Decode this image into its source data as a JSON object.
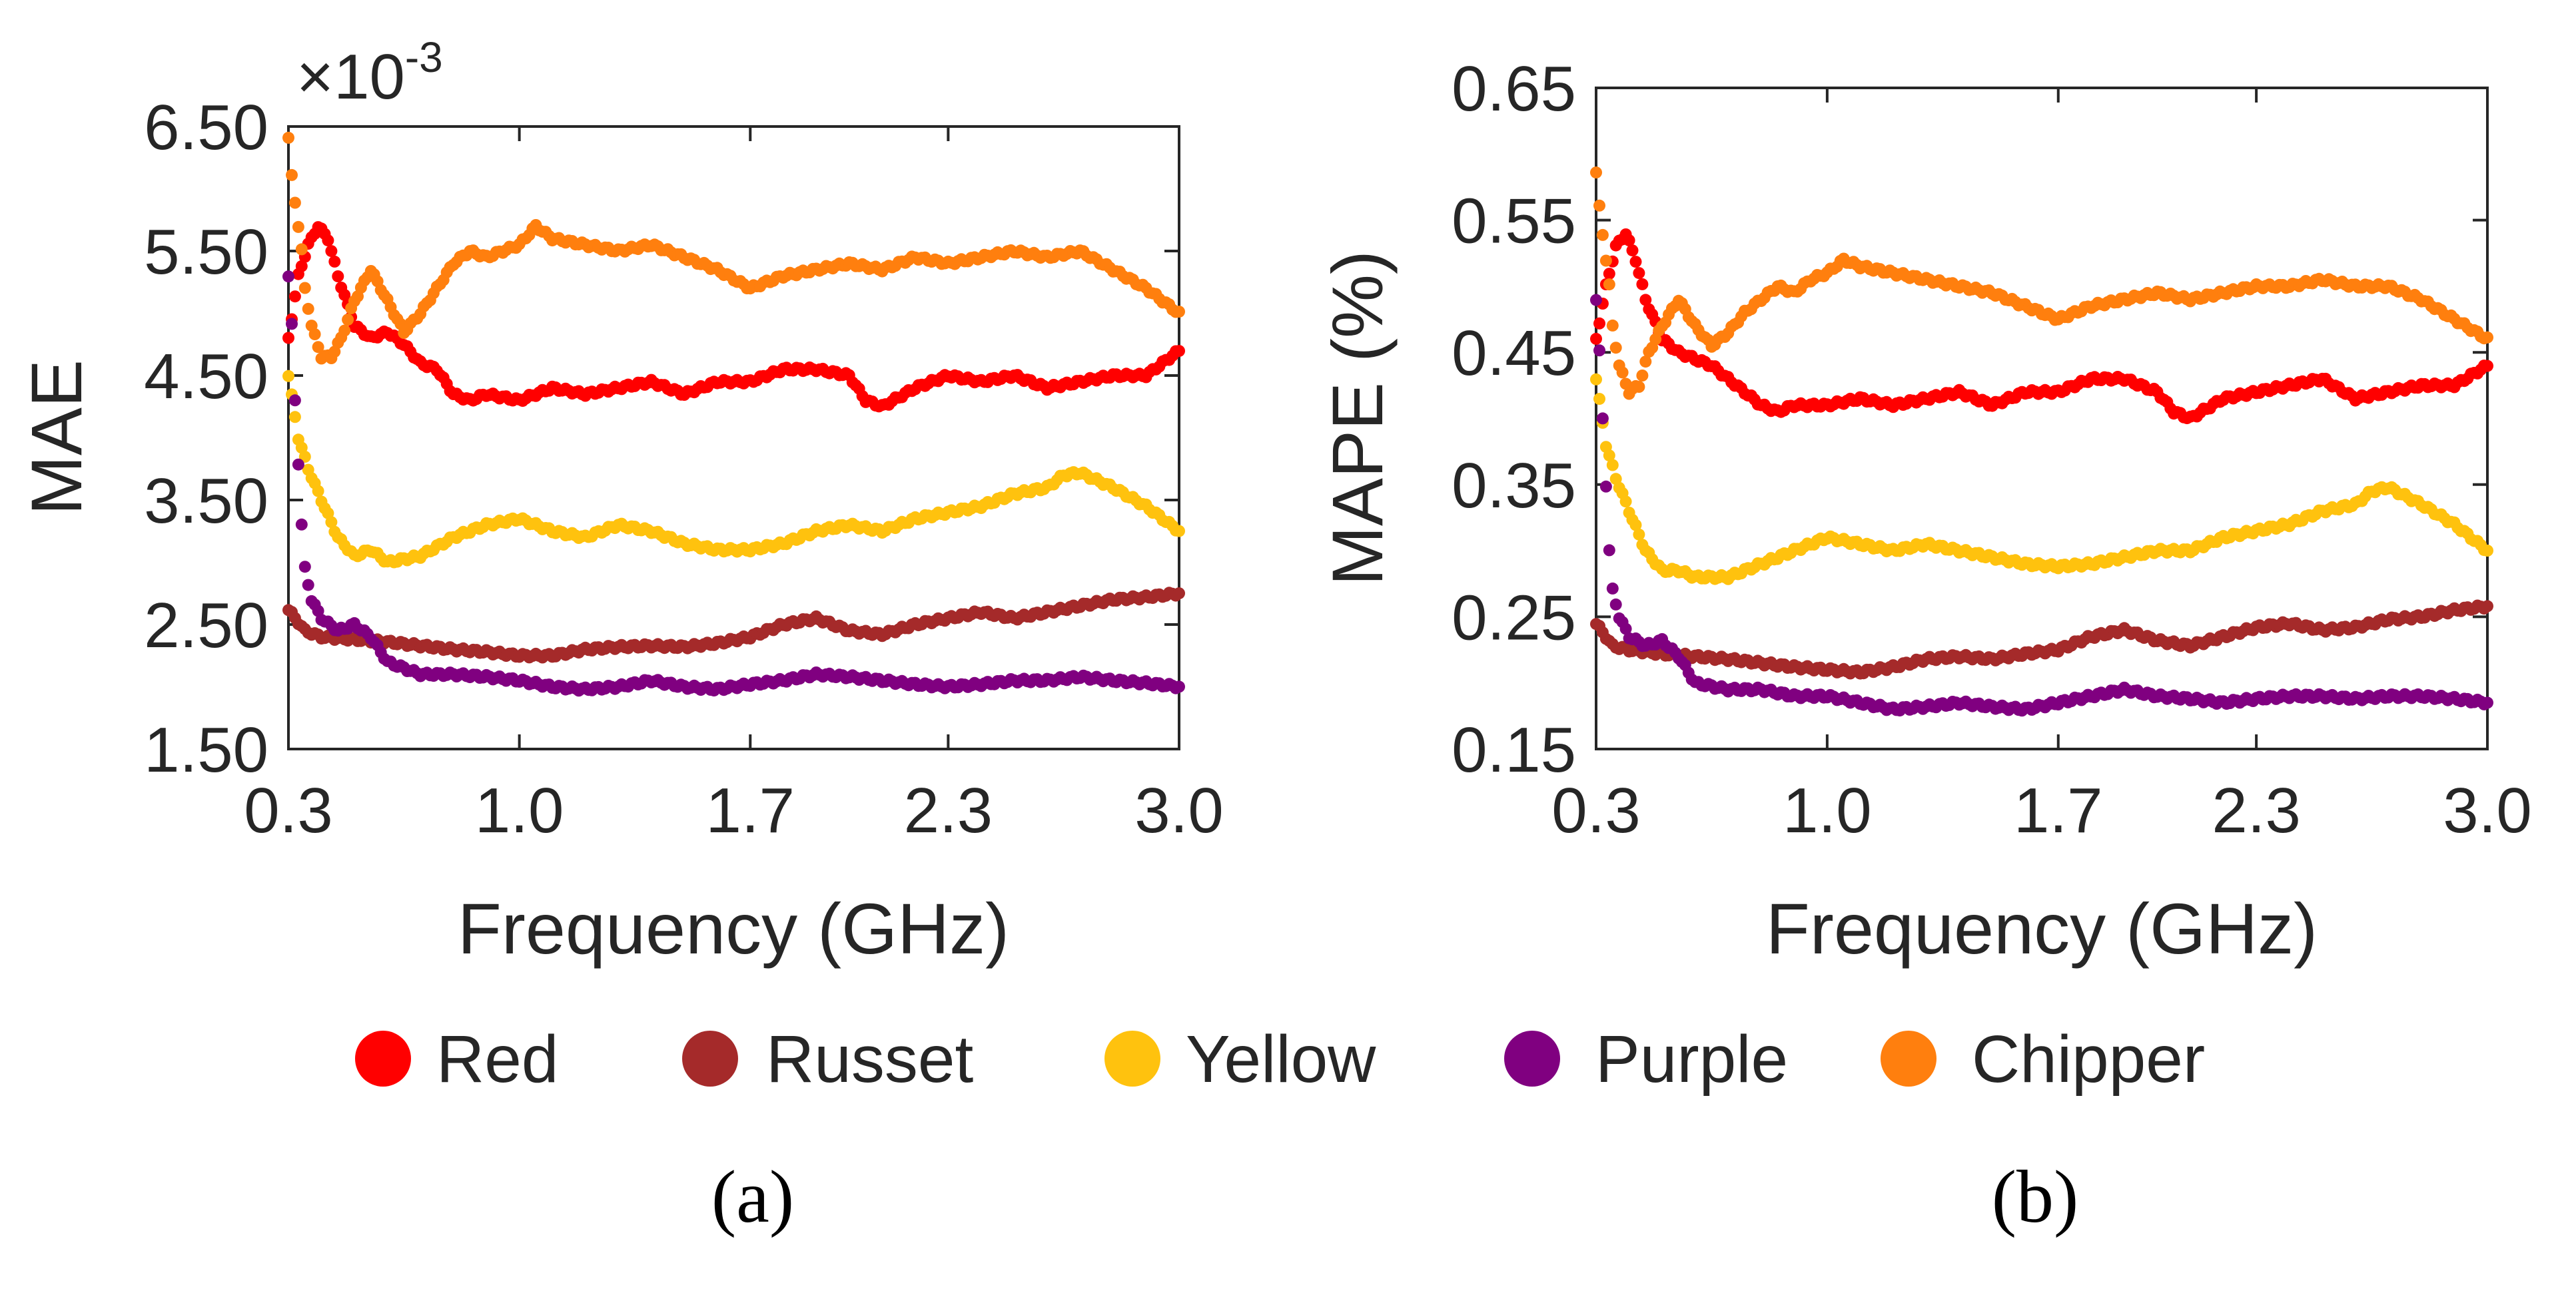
{
  "chart_data": [
    {
      "type": "scatter",
      "panel_label": "(a)",
      "xlabel": "Frequency (GHz)",
      "ylabel": "MAE",
      "exponent_label": "×10",
      "exponent_power": "-3",
      "xlim": [
        0.3,
        3.0
      ],
      "ylim": [
        1.5,
        6.5
      ],
      "xticks": [
        0.3,
        1.0,
        1.7,
        2.3,
        3.0
      ],
      "xtick_labels": [
        "0.3",
        "1.0",
        "1.7",
        "2.3",
        "3.0"
      ],
      "yticks": [
        1.5,
        2.5,
        3.5,
        4.5,
        5.5,
        6.5
      ],
      "ytick_labels": [
        "1.50",
        "2.50",
        "3.50",
        "4.50",
        "5.50",
        "6.50"
      ],
      "series": [
        {
          "name": "Red",
          "color": "#FF0000",
          "x": [
            0.3,
            0.33,
            0.36,
            0.39,
            0.42,
            0.45,
            0.5,
            0.55,
            0.6,
            0.65,
            0.7,
            0.75,
            0.8,
            0.85,
            0.9,
            1.0,
            1.1,
            1.2,
            1.3,
            1.4,
            1.5,
            1.6,
            1.7,
            1.8,
            1.9,
            2.0,
            2.05,
            2.1,
            2.2,
            2.3,
            2.4,
            2.5,
            2.6,
            2.7,
            2.8,
            2.9,
            3.0
          ],
          "y": [
            4.8,
            5.3,
            5.55,
            5.7,
            5.6,
            5.3,
            4.9,
            4.8,
            4.85,
            4.75,
            4.6,
            4.55,
            4.35,
            4.3,
            4.35,
            4.3,
            4.4,
            4.35,
            4.4,
            4.45,
            4.35,
            4.45,
            4.45,
            4.55,
            4.55,
            4.5,
            4.3,
            4.25,
            4.4,
            4.5,
            4.45,
            4.5,
            4.4,
            4.45,
            4.5,
            4.5,
            4.7
          ]
        },
        {
          "name": "Russet",
          "color": "#A52A2A",
          "x": [
            0.3,
            0.35,
            0.4,
            0.5,
            0.6,
            0.7,
            0.8,
            0.9,
            1.0,
            1.1,
            1.2,
            1.3,
            1.4,
            1.5,
            1.6,
            1.7,
            1.8,
            1.9,
            2.0,
            2.1,
            2.2,
            2.3,
            2.4,
            2.5,
            2.6,
            2.7,
            2.8,
            2.9,
            3.0
          ],
          "y": [
            2.62,
            2.45,
            2.4,
            2.38,
            2.36,
            2.33,
            2.3,
            2.28,
            2.25,
            2.25,
            2.3,
            2.32,
            2.33,
            2.32,
            2.35,
            2.4,
            2.5,
            2.55,
            2.45,
            2.42,
            2.5,
            2.55,
            2.6,
            2.55,
            2.6,
            2.65,
            2.7,
            2.72,
            2.75
          ]
        },
        {
          "name": "Yellow",
          "color": "#FFC20E",
          "x": [
            0.3,
            0.33,
            0.36,
            0.4,
            0.45,
            0.5,
            0.55,
            0.6,
            0.7,
            0.8,
            0.9,
            1.0,
            1.1,
            1.2,
            1.3,
            1.4,
            1.5,
            1.6,
            1.7,
            1.8,
            1.9,
            2.0,
            2.1,
            2.2,
            2.3,
            2.4,
            2.5,
            2.6,
            2.65,
            2.7,
            2.8,
            2.9,
            3.0
          ],
          "y": [
            4.5,
            4.0,
            3.75,
            3.5,
            3.2,
            3.05,
            3.1,
            3.0,
            3.05,
            3.2,
            3.3,
            3.35,
            3.25,
            3.2,
            3.3,
            3.25,
            3.15,
            3.1,
            3.1,
            3.15,
            3.25,
            3.3,
            3.25,
            3.35,
            3.4,
            3.45,
            3.55,
            3.6,
            3.7,
            3.72,
            3.6,
            3.45,
            3.25
          ]
        },
        {
          "name": "Purple",
          "color": "#800080",
          "x": [
            0.3,
            0.31,
            0.32,
            0.33,
            0.34,
            0.35,
            0.37,
            0.4,
            0.45,
            0.5,
            0.55,
            0.6,
            0.7,
            0.8,
            0.9,
            1.0,
            1.1,
            1.2,
            1.3,
            1.4,
            1.5,
            1.6,
            1.7,
            1.8,
            1.9,
            2.0,
            2.1,
            2.2,
            2.3,
            2.4,
            2.5,
            2.6,
            2.7,
            2.8,
            2.9,
            3.0
          ],
          "y": [
            5.3,
            4.9,
            4.3,
            3.8,
            3.3,
            2.95,
            2.7,
            2.55,
            2.45,
            2.5,
            2.4,
            2.2,
            2.1,
            2.1,
            2.08,
            2.05,
            2.0,
            1.98,
            2.0,
            2.05,
            2.0,
            1.98,
            2.02,
            2.05,
            2.1,
            2.08,
            2.05,
            2.02,
            2.0,
            2.02,
            2.05,
            2.05,
            2.08,
            2.05,
            2.03,
            2.0
          ]
        },
        {
          "name": "Chipper",
          "color": "#FF7F0E",
          "x": [
            0.3,
            0.31,
            0.32,
            0.33,
            0.34,
            0.35,
            0.37,
            0.4,
            0.43,
            0.46,
            0.5,
            0.55,
            0.6,
            0.65,
            0.7,
            0.75,
            0.8,
            0.85,
            0.9,
            0.95,
            1.0,
            1.05,
            1.1,
            1.2,
            1.3,
            1.4,
            1.5,
            1.6,
            1.7,
            1.8,
            1.9,
            2.0,
            2.1,
            2.2,
            2.3,
            2.4,
            2.5,
            2.6,
            2.7,
            2.8,
            2.9,
            3.0
          ],
          "y": [
            6.4,
            6.1,
            5.9,
            5.7,
            5.5,
            5.2,
            4.9,
            4.65,
            4.65,
            4.8,
            5.1,
            5.35,
            5.1,
            4.85,
            5.0,
            5.2,
            5.4,
            5.5,
            5.45,
            5.5,
            5.55,
            5.7,
            5.6,
            5.55,
            5.5,
            5.55,
            5.45,
            5.35,
            5.2,
            5.3,
            5.35,
            5.4,
            5.35,
            5.45,
            5.4,
            5.45,
            5.5,
            5.45,
            5.5,
            5.35,
            5.2,
            5.0
          ]
        }
      ]
    },
    {
      "type": "scatter",
      "panel_label": "(b)",
      "xlabel": "Frequency (GHz)",
      "ylabel": "MAPE (%)",
      "xlim": [
        0.3,
        3.0
      ],
      "ylim": [
        0.15,
        0.65
      ],
      "xticks": [
        0.3,
        1.0,
        1.7,
        2.3,
        3.0
      ],
      "xtick_labels": [
        "0.3",
        "1.0",
        "1.7",
        "2.3",
        "3.0"
      ],
      "yticks": [
        0.15,
        0.25,
        0.35,
        0.45,
        0.55,
        0.65
      ],
      "ytick_labels": [
        "0.15",
        "0.25",
        "0.35",
        "0.45",
        "0.55",
        "0.65"
      ],
      "series": [
        {
          "name": "Red",
          "color": "#FF0000",
          "x": [
            0.3,
            0.33,
            0.36,
            0.39,
            0.42,
            0.45,
            0.5,
            0.55,
            0.6,
            0.65,
            0.7,
            0.75,
            0.8,
            0.85,
            0.9,
            1.0,
            1.1,
            1.2,
            1.3,
            1.4,
            1.5,
            1.6,
            1.7,
            1.8,
            1.9,
            2.0,
            2.05,
            2.1,
            2.2,
            2.3,
            2.4,
            2.5,
            2.6,
            2.7,
            2.8,
            2.9,
            3.0
          ],
          "y": [
            0.46,
            0.5,
            0.53,
            0.54,
            0.52,
            0.49,
            0.46,
            0.45,
            0.445,
            0.44,
            0.43,
            0.42,
            0.41,
            0.405,
            0.41,
            0.41,
            0.415,
            0.41,
            0.415,
            0.42,
            0.41,
            0.42,
            0.42,
            0.43,
            0.43,
            0.42,
            0.405,
            0.4,
            0.415,
            0.42,
            0.425,
            0.43,
            0.415,
            0.42,
            0.425,
            0.425,
            0.44
          ]
        },
        {
          "name": "Russet",
          "color": "#A52A2A",
          "x": [
            0.3,
            0.35,
            0.4,
            0.5,
            0.6,
            0.7,
            0.8,
            0.9,
            1.0,
            1.1,
            1.2,
            1.3,
            1.4,
            1.5,
            1.6,
            1.7,
            1.8,
            1.9,
            2.0,
            2.1,
            2.2,
            2.3,
            2.4,
            2.5,
            2.6,
            2.7,
            2.8,
            2.9,
            3.0
          ],
          "y": [
            0.245,
            0.228,
            0.225,
            0.222,
            0.22,
            0.218,
            0.215,
            0.212,
            0.21,
            0.208,
            0.212,
            0.218,
            0.22,
            0.218,
            0.222,
            0.225,
            0.235,
            0.24,
            0.232,
            0.228,
            0.235,
            0.242,
            0.245,
            0.24,
            0.242,
            0.248,
            0.25,
            0.255,
            0.258
          ]
        },
        {
          "name": "Yellow",
          "color": "#FFC20E",
          "x": [
            0.3,
            0.33,
            0.36,
            0.4,
            0.45,
            0.5,
            0.55,
            0.6,
            0.7,
            0.8,
            0.9,
            1.0,
            1.1,
            1.2,
            1.3,
            1.4,
            1.5,
            1.6,
            1.7,
            1.8,
            1.9,
            2.0,
            2.1,
            2.2,
            2.3,
            2.4,
            2.5,
            2.6,
            2.65,
            2.7,
            2.8,
            2.9,
            3.0
          ],
          "y": [
            0.43,
            0.38,
            0.355,
            0.33,
            0.3,
            0.285,
            0.285,
            0.28,
            0.28,
            0.29,
            0.3,
            0.31,
            0.305,
            0.3,
            0.305,
            0.3,
            0.295,
            0.29,
            0.288,
            0.29,
            0.295,
            0.3,
            0.3,
            0.31,
            0.315,
            0.32,
            0.33,
            0.335,
            0.345,
            0.348,
            0.335,
            0.32,
            0.3
          ]
        },
        {
          "name": "Purple",
          "color": "#800080",
          "x": [
            0.3,
            0.31,
            0.32,
            0.33,
            0.34,
            0.35,
            0.37,
            0.4,
            0.45,
            0.5,
            0.55,
            0.6,
            0.7,
            0.8,
            0.9,
            1.0,
            1.1,
            1.2,
            1.3,
            1.4,
            1.5,
            1.6,
            1.7,
            1.8,
            1.9,
            2.0,
            2.1,
            2.2,
            2.3,
            2.4,
            2.5,
            2.6,
            2.7,
            2.8,
            2.9,
            3.0
          ],
          "y": [
            0.49,
            0.45,
            0.4,
            0.35,
            0.3,
            0.27,
            0.25,
            0.235,
            0.228,
            0.232,
            0.22,
            0.2,
            0.195,
            0.195,
            0.19,
            0.19,
            0.185,
            0.18,
            0.182,
            0.185,
            0.182,
            0.18,
            0.185,
            0.19,
            0.195,
            0.19,
            0.188,
            0.185,
            0.188,
            0.19,
            0.19,
            0.188,
            0.19,
            0.19,
            0.188,
            0.185
          ]
        },
        {
          "name": "Chipper",
          "color": "#FF7F0E",
          "x": [
            0.3,
            0.31,
            0.32,
            0.33,
            0.34,
            0.35,
            0.37,
            0.4,
            0.43,
            0.46,
            0.5,
            0.55,
            0.6,
            0.65,
            0.7,
            0.75,
            0.8,
            0.85,
            0.9,
            0.95,
            1.0,
            1.05,
            1.1,
            1.2,
            1.3,
            1.4,
            1.5,
            1.6,
            1.7,
            1.8,
            1.9,
            2.0,
            2.1,
            2.2,
            2.3,
            2.4,
            2.5,
            2.6,
            2.7,
            2.8,
            2.9,
            3.0
          ],
          "y": [
            0.585,
            0.56,
            0.54,
            0.52,
            0.5,
            0.47,
            0.44,
            0.42,
            0.425,
            0.45,
            0.47,
            0.49,
            0.47,
            0.455,
            0.465,
            0.48,
            0.49,
            0.5,
            0.495,
            0.505,
            0.51,
            0.52,
            0.515,
            0.51,
            0.505,
            0.5,
            0.495,
            0.485,
            0.475,
            0.485,
            0.49,
            0.495,
            0.49,
            0.495,
            0.5,
            0.5,
            0.505,
            0.5,
            0.5,
            0.49,
            0.475,
            0.46
          ]
        }
      ]
    }
  ],
  "legend": {
    "items": [
      {
        "label": "Red",
        "color": "#FF0000"
      },
      {
        "label": "Russet",
        "color": "#A52A2A"
      },
      {
        "label": "Yellow",
        "color": "#FFC20E"
      },
      {
        "label": "Purple",
        "color": "#800080"
      },
      {
        "label": "Chipper",
        "color": "#FF7F0E"
      }
    ]
  }
}
